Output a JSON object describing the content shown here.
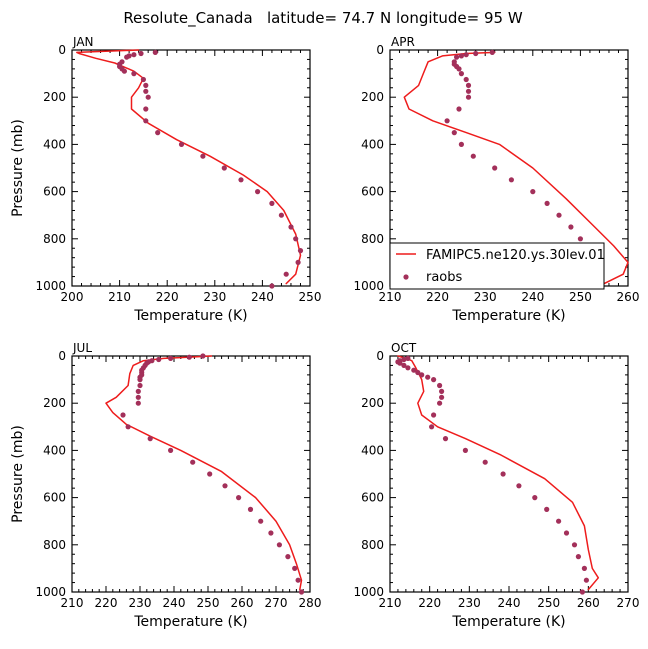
{
  "figure_title": "Resolute_Canada   latitude= 74.7 N longitude= 95 W",
  "colors": {
    "model": "#ee1c1c",
    "obs": "#a3305a",
    "axis": "#000000"
  },
  "legend": {
    "model_label": "FAMIPC5.ne120.ys.30lev.01",
    "obs_label": "raobs"
  },
  "chart_data": [
    {
      "type": "line",
      "panel": "JAN",
      "title": "JAN",
      "xlabel": "Temperature (K)",
      "ylabel": "Pressure (mb)",
      "xlim": [
        200,
        250
      ],
      "ylim": [
        1000,
        0
      ],
      "xticks": [
        200,
        210,
        220,
        230,
        240,
        250
      ],
      "yticks": [
        0,
        200,
        400,
        600,
        800,
        1000
      ],
      "series": [
        {
          "name": "FAMIPC5.ne120.ys.30lev.01",
          "style": "line",
          "points": [
            [
              214,
              0
            ],
            [
              201,
              10
            ],
            [
              201.5,
              15
            ],
            [
              205,
              35
            ],
            [
              209,
              55
            ],
            [
              213,
              90
            ],
            [
              215,
              120
            ],
            [
              214,
              160
            ],
            [
              212.5,
              200
            ],
            [
              212.5,
              250
            ],
            [
              216,
              310
            ],
            [
              222,
              380
            ],
            [
              229,
              450
            ],
            [
              236,
              530
            ],
            [
              241,
              600
            ],
            [
              244.5,
              680
            ],
            [
              247,
              780
            ],
            [
              248,
              870
            ],
            [
              247,
              950
            ],
            [
              245,
              990
            ]
          ]
        },
        {
          "name": "raobs",
          "style": "markers",
          "points": [
            [
              217.5,
              10
            ],
            [
              214.5,
              15
            ],
            [
              213,
              20
            ],
            [
              212,
              25
            ],
            [
              211.5,
              30
            ],
            [
              210.5,
              50
            ],
            [
              210,
              60
            ],
            [
              210,
              70
            ],
            [
              210.5,
              80
            ],
            [
              211,
              90
            ],
            [
              213,
              100
            ],
            [
              215,
              125
            ],
            [
              215.5,
              150
            ],
            [
              215.5,
              175
            ],
            [
              216,
              200
            ],
            [
              215.5,
              250
            ],
            [
              215.5,
              300
            ],
            [
              218,
              350
            ],
            [
              223,
              400
            ],
            [
              227.5,
              450
            ],
            [
              232,
              500
            ],
            [
              235.5,
              550
            ],
            [
              239,
              600
            ],
            [
              242,
              650
            ],
            [
              244,
              700
            ],
            [
              246,
              750
            ],
            [
              247,
              800
            ],
            [
              248,
              850
            ],
            [
              247.5,
              900
            ],
            [
              245,
              950
            ],
            [
              242,
              1000
            ]
          ]
        }
      ]
    },
    {
      "type": "line",
      "panel": "APR",
      "title": "APR",
      "xlabel": "Temperature (K)",
      "ylabel": "",
      "xlim": [
        210,
        260
      ],
      "ylim": [
        1000,
        0
      ],
      "xticks": [
        210,
        220,
        230,
        240,
        250,
        260
      ],
      "yticks": [
        0,
        200,
        400,
        600,
        800,
        1000
      ],
      "series": [
        {
          "name": "FAMIPC5.ne120.ys.30lev.01",
          "style": "line",
          "points": [
            [
              232,
              10
            ],
            [
              226,
              15
            ],
            [
              221,
              25
            ],
            [
              218,
              50
            ],
            [
              217,
              100
            ],
            [
              216,
              150
            ],
            [
              213,
              200
            ],
            [
              214,
              250
            ],
            [
              219,
              300
            ],
            [
              226,
              350
            ],
            [
              233,
              400
            ],
            [
              240,
              500
            ],
            [
              247,
              630
            ],
            [
              253,
              750
            ],
            [
              257,
              830
            ],
            [
              260,
              900
            ],
            [
              259,
              950
            ],
            [
              255,
              990
            ]
          ]
        },
        {
          "name": "raobs",
          "style": "markers",
          "points": [
            [
              231.5,
              10
            ],
            [
              228,
              15
            ],
            [
              226,
              20
            ],
            [
              225,
              25
            ],
            [
              224,
              30
            ],
            [
              223.5,
              50
            ],
            [
              223.5,
              60
            ],
            [
              224,
              70
            ],
            [
              224.5,
              80
            ],
            [
              225,
              100
            ],
            [
              226,
              125
            ],
            [
              226.5,
              150
            ],
            [
              226.5,
              175
            ],
            [
              226.5,
              200
            ],
            [
              224.5,
              250
            ],
            [
              222,
              300
            ],
            [
              223.5,
              350
            ],
            [
              225,
              400
            ],
            [
              227.5,
              450
            ],
            [
              232,
              500
            ],
            [
              235.5,
              550
            ],
            [
              240,
              600
            ],
            [
              243,
              650
            ],
            [
              245.5,
              700
            ],
            [
              248,
              750
            ],
            [
              250,
              800
            ],
            [
              252,
              850
            ],
            [
              254,
              900
            ],
            [
              253.5,
              950
            ],
            [
              251,
              1000
            ]
          ]
        }
      ]
    },
    {
      "type": "line",
      "panel": "JUL",
      "title": "JUL",
      "xlabel": "Temperature (K)",
      "ylabel": "Pressure (mb)",
      "xlim": [
        210,
        280
      ],
      "ylim": [
        1000,
        0
      ],
      "xticks": [
        210,
        220,
        230,
        240,
        250,
        260,
        270,
        280
      ],
      "yticks": [
        0,
        200,
        400,
        600,
        800,
        1000
      ],
      "series": [
        {
          "name": "FAMIPC5.ne120.ys.30lev.01",
          "style": "line",
          "points": [
            [
              251,
              0
            ],
            [
              244,
              5
            ],
            [
              237,
              10
            ],
            [
              231,
              20
            ],
            [
              228,
              40
            ],
            [
              227,
              75
            ],
            [
              226.5,
              125
            ],
            [
              223,
              175
            ],
            [
              220,
              200
            ],
            [
              222,
              240
            ],
            [
              226,
              290
            ],
            [
              233,
              340
            ],
            [
              242,
              400
            ],
            [
              254,
              490
            ],
            [
              264,
              600
            ],
            [
              270,
              700
            ],
            [
              274,
              800
            ],
            [
              276,
              880
            ],
            [
              277.5,
              950
            ],
            [
              277,
              990
            ]
          ]
        },
        {
          "name": "raobs",
          "style": "markers",
          "points": [
            [
              248.5,
              0
            ],
            [
              244.5,
              5
            ],
            [
              239,
              10
            ],
            [
              235.5,
              15
            ],
            [
              233.5,
              20
            ],
            [
              232.5,
              25
            ],
            [
              232,
              30
            ],
            [
              231.5,
              40
            ],
            [
              231,
              50
            ],
            [
              230.5,
              60
            ],
            [
              230.5,
              70
            ],
            [
              230.5,
              80
            ],
            [
              230,
              90
            ],
            [
              230,
              100
            ],
            [
              230,
              125
            ],
            [
              229.5,
              150
            ],
            [
              229.5,
              175
            ],
            [
              229.5,
              200
            ],
            [
              225,
              250
            ],
            [
              226.5,
              300
            ],
            [
              233,
              350
            ],
            [
              239,
              400
            ],
            [
              245.5,
              450
            ],
            [
              250.5,
              500
            ],
            [
              255,
              550
            ],
            [
              259,
              600
            ],
            [
              262.5,
              650
            ],
            [
              265.5,
              700
            ],
            [
              268.5,
              750
            ],
            [
              271,
              800
            ],
            [
              273.5,
              850
            ],
            [
              275.5,
              900
            ],
            [
              276.5,
              950
            ],
            [
              277.5,
              1000
            ]
          ]
        }
      ]
    },
    {
      "type": "line",
      "panel": "OCT",
      "title": "OCT",
      "xlabel": "Temperature (K)",
      "ylabel": "",
      "xlim": [
        210,
        270
      ],
      "ylim": [
        1000,
        0
      ],
      "xticks": [
        210,
        220,
        230,
        240,
        250,
        260,
        270
      ],
      "yticks": [
        0,
        200,
        400,
        600,
        800,
        1000
      ],
      "series": [
        {
          "name": "FAMIPC5.ne120.ys.30lev.01",
          "style": "line",
          "points": [
            [
              212,
              0
            ],
            [
              214,
              10
            ],
            [
              215.5,
              20
            ],
            [
              216.5,
              50
            ],
            [
              218,
              100
            ],
            [
              218.5,
              150
            ],
            [
              217,
              200
            ],
            [
              218,
              250
            ],
            [
              222,
              300
            ],
            [
              229,
              350
            ],
            [
              238,
              420
            ],
            [
              249,
              520
            ],
            [
              256,
              620
            ],
            [
              259,
              720
            ],
            [
              260,
              820
            ],
            [
              261,
              900
            ],
            [
              262.5,
              940
            ],
            [
              260,
              990
            ]
          ]
        },
        {
          "name": "raobs",
          "style": "markers",
          "points": [
            [
              214.5,
              10
            ],
            [
              213.5,
              15
            ],
            [
              212.5,
              20
            ],
            [
              212,
              25
            ],
            [
              212.5,
              30
            ],
            [
              213.5,
              40
            ],
            [
              214.5,
              50
            ],
            [
              216,
              60
            ],
            [
              217,
              70
            ],
            [
              218,
              80
            ],
            [
              219.5,
              90
            ],
            [
              221,
              100
            ],
            [
              222.5,
              125
            ],
            [
              223,
              150
            ],
            [
              223,
              175
            ],
            [
              222.5,
              200
            ],
            [
              221,
              250
            ],
            [
              220.5,
              300
            ],
            [
              224,
              350
            ],
            [
              229,
              400
            ],
            [
              234,
              450
            ],
            [
              238.5,
              500
            ],
            [
              242.5,
              550
            ],
            [
              246.5,
              600
            ],
            [
              249.5,
              650
            ],
            [
              252.5,
              700
            ],
            [
              254.5,
              750
            ],
            [
              256.5,
              800
            ],
            [
              257.5,
              850
            ],
            [
              259,
              900
            ],
            [
              259.5,
              950
            ],
            [
              258.5,
              1000
            ]
          ]
        }
      ]
    }
  ]
}
